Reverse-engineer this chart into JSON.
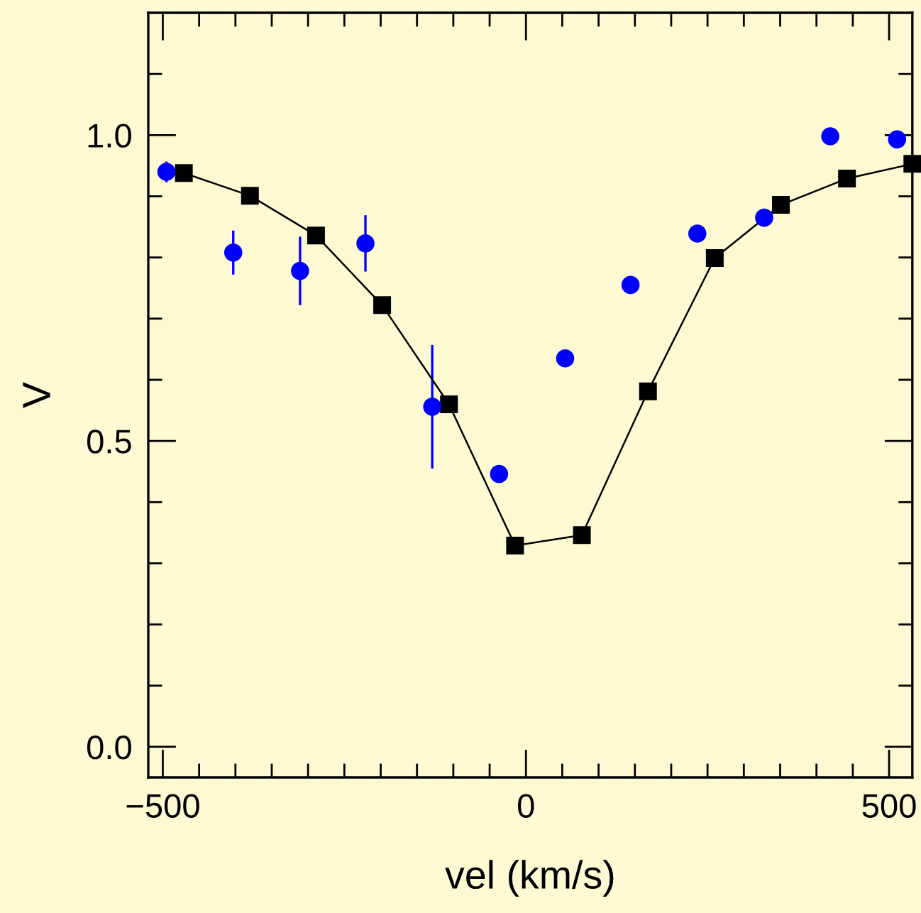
{
  "chart_data": {
    "type": "line",
    "xlabel": "vel (km/s)",
    "ylabel": "V",
    "xlim": [
      -520,
      532
    ],
    "ylim": [
      -0.05,
      1.2
    ],
    "xticks": [
      {
        "value": -500,
        "label": "−500"
      },
      {
        "value": -450,
        "label": null
      },
      {
        "value": -400,
        "label": null
      },
      {
        "value": -350,
        "label": null
      },
      {
        "value": -300,
        "label": null
      },
      {
        "value": -250,
        "label": null
      },
      {
        "value": -200,
        "label": null
      },
      {
        "value": -150,
        "label": null
      },
      {
        "value": -100,
        "label": null
      },
      {
        "value": -50,
        "label": null
      },
      0,
      {
        "value": 50,
        "label": null
      },
      {
        "value": 100,
        "label": null
      },
      {
        "value": 150,
        "label": null
      },
      {
        "value": 200,
        "label": null
      },
      {
        "value": 250,
        "label": null
      },
      {
        "value": 300,
        "label": null
      },
      {
        "value": 350,
        "label": null
      },
      {
        "value": 400,
        "label": null
      },
      {
        "value": 450,
        "label": null
      },
      500
    ],
    "yticks": [
      {
        "value": 0.0,
        "label": "0.0"
      },
      {
        "value": 0.1,
        "label": null
      },
      {
        "value": 0.2,
        "label": null
      },
      {
        "value": 0.3,
        "label": null
      },
      {
        "value": 0.4,
        "label": null
      },
      {
        "value": 0.5,
        "label": "0.5"
      },
      {
        "value": 0.6,
        "label": null
      },
      {
        "value": 0.7,
        "label": null
      },
      {
        "value": 0.8,
        "label": null
      },
      {
        "value": 0.9,
        "label": null
      },
      {
        "value": 1.0,
        "label": "1.0"
      },
      {
        "value": 1.1,
        "label": null
      }
    ],
    "grid": false,
    "legend": false,
    "series": [
      {
        "type": "scatter",
        "color": "#0000ff",
        "marker": "circle",
        "x": [
          -495,
          -403,
          -311,
          -221,
          -129,
          -37,
          54,
          144,
          236,
          328,
          419,
          511
        ],
        "values": [
          0.94,
          0.808,
          0.778,
          0.823,
          0.556,
          0.446,
          0.635,
          0.755,
          0.839,
          0.865,
          0.998,
          0.993
        ],
        "errors": [
          0.017,
          0.036,
          0.056,
          0.046,
          0.101,
          null,
          null,
          null,
          null,
          null,
          null,
          null
        ]
      },
      {
        "color": "#000000",
        "marker": "square",
        "line_style": "solid",
        "x": [
          -471,
          -380,
          -289,
          -198,
          -106,
          -15,
          77,
          168,
          260,
          351,
          442,
          532
        ],
        "values": [
          0.938,
          0.901,
          0.836,
          0.722,
          0.56,
          0.329,
          0.346,
          0.581,
          0.799,
          0.886,
          0.929,
          0.953
        ]
      }
    ]
  }
}
